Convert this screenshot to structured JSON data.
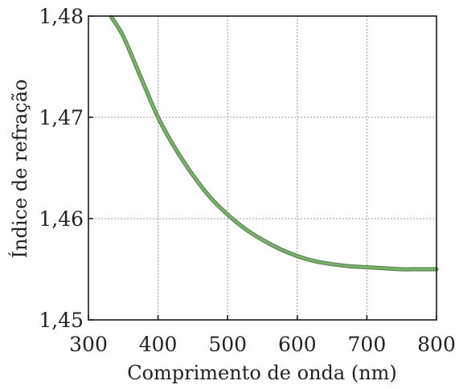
{
  "chart_data": {
    "type": "line",
    "title": "",
    "xlabel": "Comprimento de onda (nm)",
    "ylabel": "Índice de refração",
    "xlim": [
      300,
      800
    ],
    "ylim": [
      1.45,
      1.48
    ],
    "x_ticks": [
      300,
      400,
      500,
      600,
      700,
      800
    ],
    "y_ticks": [
      1.45,
      1.46,
      1.47,
      1.48
    ],
    "x_tick_labels": [
      "300",
      "400",
      "500",
      "600",
      "700",
      "800"
    ],
    "y_tick_labels": [
      "1,45",
      "1,46",
      "1,47",
      "1,48"
    ],
    "grid": true,
    "legend": "none",
    "series": [
      {
        "color": "#7bb36d",
        "x": [
          333,
          350,
          375,
          400,
          425,
          450,
          475,
          500,
          525,
          550,
          575,
          600,
          625,
          650,
          675,
          700,
          725,
          750,
          775,
          800
        ],
        "y": [
          1.4799,
          1.478,
          1.474,
          1.47,
          1.4669,
          1.4643,
          1.4621,
          1.4604,
          1.459,
          1.4579,
          1.457,
          1.4563,
          1.4558,
          1.4555,
          1.4553,
          1.4552,
          1.4551,
          1.455,
          1.455,
          1.455
        ]
      }
    ]
  }
}
